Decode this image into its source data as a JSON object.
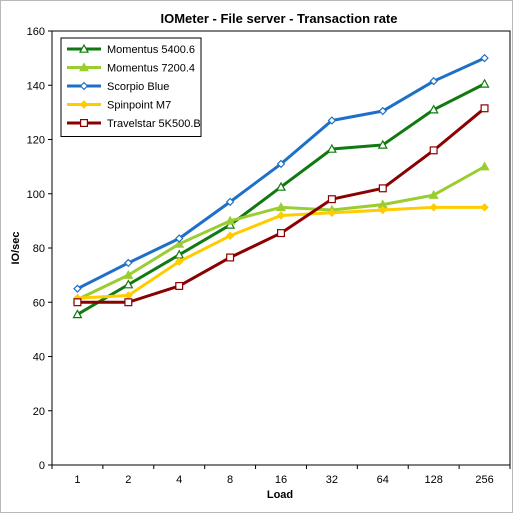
{
  "chart_data": {
    "type": "line",
    "title": "IOMeter - File server - Transaction rate",
    "xlabel": "Load",
    "ylabel": "IO/sec",
    "categories": [
      "1",
      "2",
      "4",
      "8",
      "16",
      "32",
      "64",
      "128",
      "256"
    ],
    "ylim": [
      0,
      160
    ],
    "yticks": [
      0,
      20,
      40,
      60,
      80,
      100,
      120,
      140,
      160
    ],
    "grid": false,
    "legend_position": "top-left",
    "series": [
      {
        "name": "Momentus 5400.6",
        "color": "#0f7a0f",
        "marker": "triangle-open",
        "values": [
          55.5,
          66.5,
          77.5,
          88.5,
          102.5,
          116.5,
          118,
          131,
          140.5
        ]
      },
      {
        "name": "Momentus 7200.4",
        "color": "#9acd32",
        "marker": "triangle-filled",
        "values": [
          61,
          70,
          81.5,
          90,
          95,
          94,
          96,
          99.5,
          110
        ]
      },
      {
        "name": "Scorpio Blue",
        "color": "#1e6fc8",
        "marker": "diamond-open",
        "values": [
          65,
          74.5,
          83.5,
          97,
          111,
          127,
          130.5,
          141.5,
          150
        ]
      },
      {
        "name": "Spinpoint M7",
        "color": "#ffcc00",
        "marker": "diamond-filled",
        "values": [
          61.5,
          62.5,
          75,
          84.5,
          92,
          93,
          94,
          95,
          95
        ]
      },
      {
        "name": "Travelstar 5K500.B",
        "color": "#8b0000",
        "marker": "square-open",
        "values": [
          60,
          60,
          66,
          76.5,
          85.5,
          98,
          102,
          116,
          131.5
        ]
      }
    ]
  }
}
